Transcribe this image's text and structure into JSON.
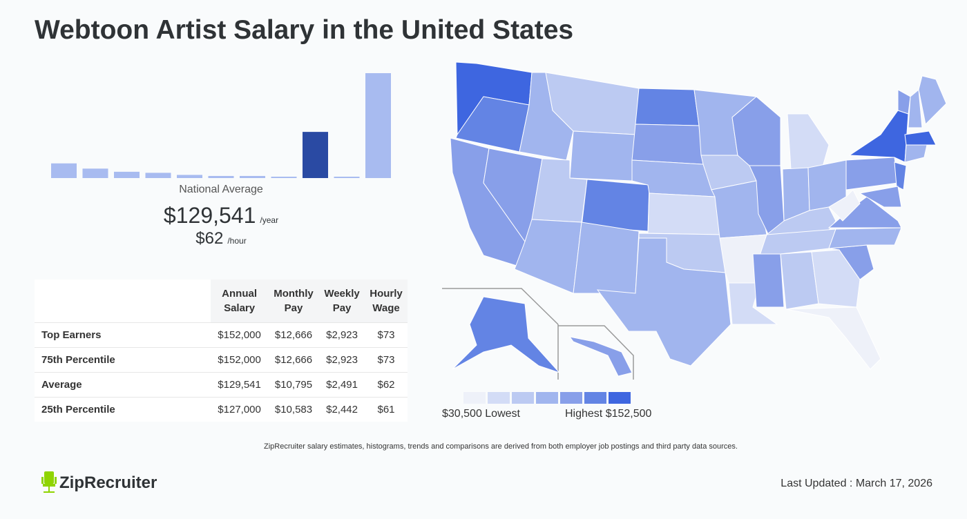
{
  "title": "Webtoon Artist Salary in the United States",
  "chart_data": {
    "type": "bar",
    "title": "",
    "values_relative": [
      14,
      9,
      6,
      5,
      3,
      2,
      2,
      1,
      44,
      1,
      100
    ],
    "highlight_index": 8,
    "colors": {
      "bar": "#a8bbf0",
      "highlight": "#2a4aa3"
    }
  },
  "national": {
    "label": "National Average",
    "annual": "$129,541",
    "annual_unit": "/year",
    "hourly": "$62",
    "hourly_unit": "/hour"
  },
  "table": {
    "headers": [
      "",
      "Annual Salary",
      "Monthly Pay",
      "Weekly Pay",
      "Hourly Wage"
    ],
    "rows": [
      [
        "Top Earners",
        "$152,000",
        "$12,666",
        "$2,923",
        "$73"
      ],
      [
        "75th Percentile",
        "$152,000",
        "$12,666",
        "$2,923",
        "$73"
      ],
      [
        "Average",
        "$129,541",
        "$10,795",
        "$2,491",
        "$62"
      ],
      [
        "25th Percentile",
        "$127,000",
        "$10,583",
        "$2,442",
        "$61"
      ]
    ]
  },
  "map": {
    "scale_colors": [
      "#eef1f9",
      "#d3dcf6",
      "#bccaf2",
      "#a1b5ee",
      "#889fe9",
      "#6384e4",
      "#3e66e0"
    ],
    "lowest": "$30,500 Lowest",
    "highest": "Highest $152,500",
    "state_levels": {
      "WA": 6,
      "OR": 5,
      "CA": 4,
      "NV": 4,
      "ID": 3,
      "MT": 2,
      "WY": 3,
      "UT": 2,
      "CO": 5,
      "AZ": 3,
      "NM": 3,
      "ND": 5,
      "SD": 4,
      "NE": 3,
      "KS": 1,
      "OK": 2,
      "TX": 3,
      "MN": 3,
      "IA": 2,
      "MO": 3,
      "AR": 0,
      "LA": 1,
      "WI": 4,
      "IL": 4,
      "MI": 1,
      "IN": 3,
      "OH": 3,
      "KY": 2,
      "TN": 2,
      "MS": 4,
      "AL": 2,
      "GA": 1,
      "FL": 0,
      "SC": 4,
      "NC": 3,
      "VA": 4,
      "WV": 0,
      "PA": 4,
      "NY": 6,
      "VT": 4,
      "NH": 3,
      "ME": 3,
      "MA": 6,
      "CT": 3,
      "NJ": 5,
      "MD": 4,
      "AK": 5,
      "HI": 4
    }
  },
  "note": "ZipRecruiter salary estimates, histograms, trends and comparisons are derived from both employer job postings and third party data sources.",
  "logo": "ZipRecruiter",
  "updated": "Last Updated : March 17, 2026"
}
